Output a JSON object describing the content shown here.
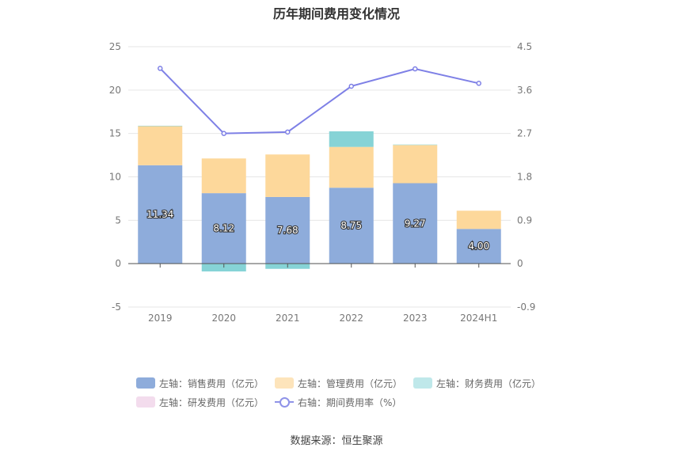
{
  "title": "历年期间费用变化情况",
  "source": "数据来源：恒生聚源",
  "colors": {
    "sales": "#8eacdb",
    "admin": "#fdd89b",
    "finance": "#86d3d6",
    "rnd": "#f3dced",
    "rate": "#7e80e6"
  },
  "legend": [
    {
      "label": "左轴：销售费用（亿元）",
      "color": "#8eacdb",
      "kind": "bar"
    },
    {
      "label": "左轴：管理费用（亿元）",
      "color": "#fde4bb",
      "kind": "bar"
    },
    {
      "label": "左轴：财务费用（亿元）",
      "color": "#bfe8ea",
      "kind": "bar"
    },
    {
      "label": "左轴：研发费用（亿元）",
      "color": "#f3dced",
      "kind": "bar"
    },
    {
      "label": "右轴：期间费用率（%）",
      "color": "#8f93e8",
      "kind": "line"
    }
  ],
  "chart_data": {
    "type": "bar",
    "stacked": true,
    "categories": [
      "2019",
      "2020",
      "2021",
      "2022",
      "2023",
      "2024H1"
    ],
    "series": [
      {
        "name": "左轴：销售费用（亿元）",
        "axis": "left",
        "values": [
          11.34,
          8.12,
          7.68,
          8.75,
          9.27,
          4.0
        ],
        "labels": [
          "11.34",
          "8.12",
          "7.68",
          "8.75",
          "9.27",
          "4.00"
        ]
      },
      {
        "name": "左轴：管理费用（亿元）",
        "axis": "left",
        "values": [
          4.5,
          4.0,
          4.9,
          4.7,
          4.4,
          2.1
        ]
      },
      {
        "name": "左轴：财务费用（亿元）",
        "axis": "left",
        "values": [
          0.05,
          -0.9,
          -0.6,
          1.8,
          0.05,
          0.0
        ]
      },
      {
        "name": "左轴：研发费用（亿元）",
        "axis": "left",
        "values": [
          0,
          0,
          0,
          0,
          0,
          0
        ]
      },
      {
        "name": "右轴：期间费用率（%）",
        "axis": "right",
        "type": "line",
        "values": [
          4.05,
          2.7,
          2.73,
          3.68,
          4.04,
          3.74
        ]
      }
    ],
    "y_left": {
      "min": -5,
      "max": 25,
      "ticks": [
        "-5",
        "0",
        "5",
        "10",
        "15",
        "20",
        "25"
      ]
    },
    "y_right": {
      "min": -0.9,
      "max": 4.5,
      "ticks": [
        "-0.9",
        "0",
        "0.9",
        "1.8",
        "2.7",
        "3.6",
        "4.5"
      ]
    },
    "grid": true,
    "legend_position": "bottom"
  }
}
